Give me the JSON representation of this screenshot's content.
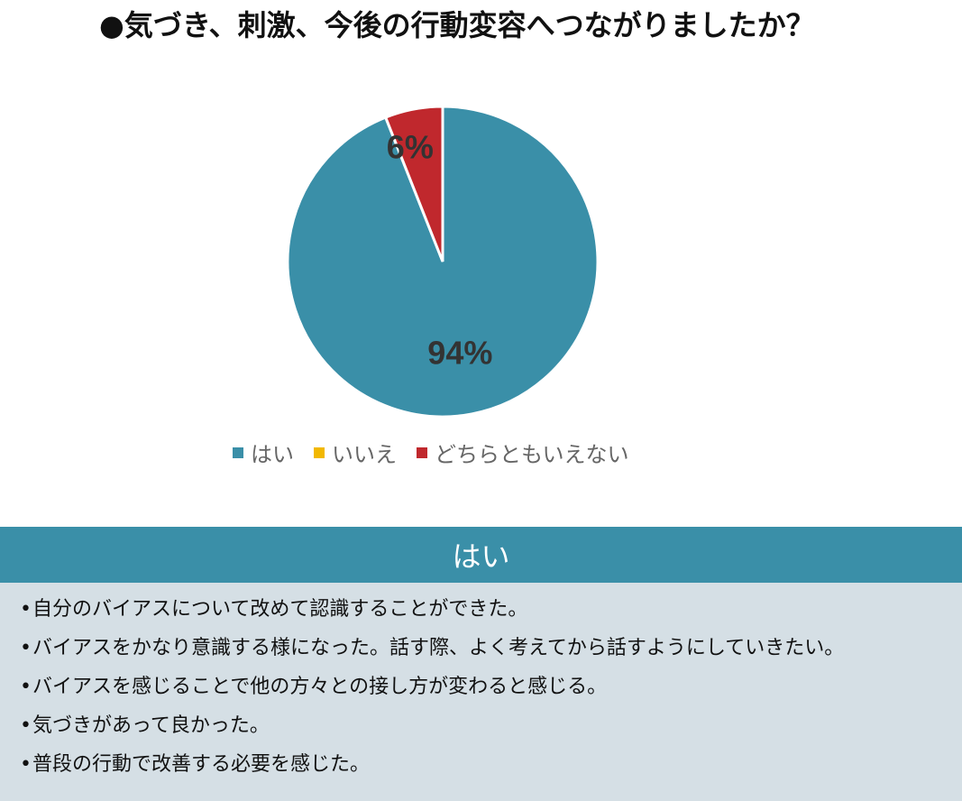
{
  "chart_data": {
    "type": "pie",
    "title": "●気づき、刺激、今後の行動変容へつながりましたか？",
    "categories": [
      "はい",
      "いいえ",
      "どちらともいえない"
    ],
    "values": [
      94,
      0,
      6
    ],
    "data_labels": [
      "94%",
      "",
      "6%"
    ],
    "colors": [
      "#3a8fa8",
      "#f2b800",
      "#c0282d"
    ],
    "legend_position": "bottom"
  },
  "answer": {
    "header": "はい",
    "bullet": "•",
    "comments": [
      "自分のバイアスについて改めて認識することができた。",
      "バイアスをかなり意識する様になった。話す際、よく考えてから話すようにしていきたい。",
      "バイアスを感じることで他の方々との接し方が変わると感じる。",
      "気づきがあって良かった。",
      "普段の行動で改善する必要を感じた。"
    ]
  }
}
